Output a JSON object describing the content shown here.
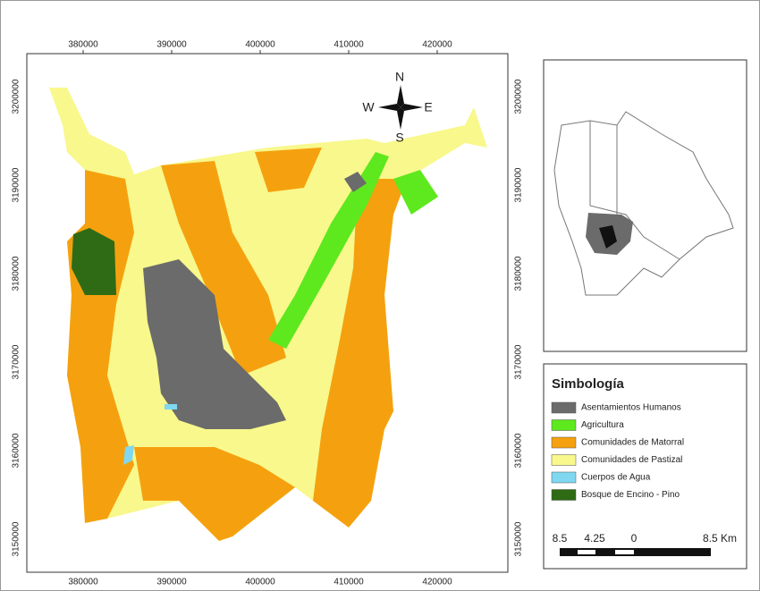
{
  "map": {
    "x_ticks": [
      "380000",
      "390000",
      "400000",
      "410000",
      "420000"
    ],
    "y_ticks": [
      "3200000",
      "3190000",
      "3180000",
      "3170000",
      "3160000",
      "3150000"
    ],
    "compass": {
      "north": "N",
      "south": "S",
      "east": "E",
      "west": "W"
    },
    "legend": {
      "title": "Simbología",
      "items": [
        {
          "label": "Asentamientos Humanos",
          "color": "#6b6b6b"
        },
        {
          "label": "Agricultura",
          "color": "#5ee81e"
        },
        {
          "label": "Comunidades de Matorral",
          "color": "#f5a10f"
        },
        {
          "label": "Comunidades de Pastizal",
          "color": "#f8f88c"
        },
        {
          "label": "Cuerpos de Agua",
          "color": "#7fd8f0"
        },
        {
          "label": "Bosque de Encino - Pino",
          "color": "#2e6b14"
        }
      ]
    },
    "scale_bar": {
      "labels": [
        "8.5",
        "4.25",
        "0",
        "8.5 Km"
      ]
    }
  }
}
